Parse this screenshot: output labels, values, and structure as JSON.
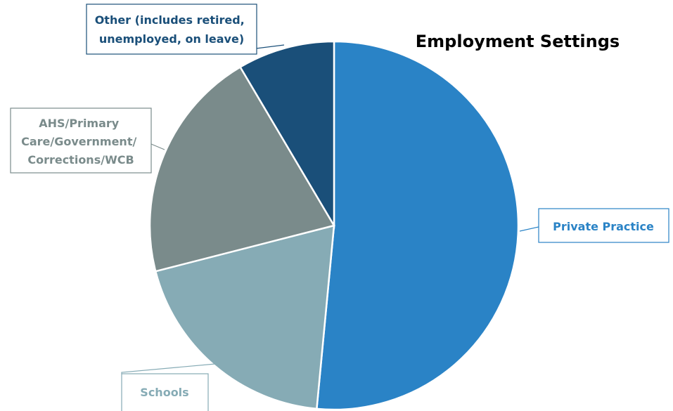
{
  "chart_data": {
    "type": "pie",
    "title": "Employment Settings",
    "start_angle_deg": 0,
    "direction": "clockwise",
    "slices": [
      {
        "label": "Private Practice",
        "value": 51.5,
        "color": "#2a83c6",
        "label_color": "#2a83c6"
      },
      {
        "label": "Schools",
        "value": 19.5,
        "color": "#86abb5",
        "label_color": "#86abb5"
      },
      {
        "label": "AHS/Primary Care/Government/ Corrections/WCB",
        "value": 20.5,
        "color": "#7a8b8b",
        "label_color": "#7a8b8b"
      },
      {
        "label": "Other (includes retired, unemployed, on leave)",
        "value": 8.5,
        "color": "#1a4f79",
        "label_color": "#1a4f79"
      }
    ]
  }
}
